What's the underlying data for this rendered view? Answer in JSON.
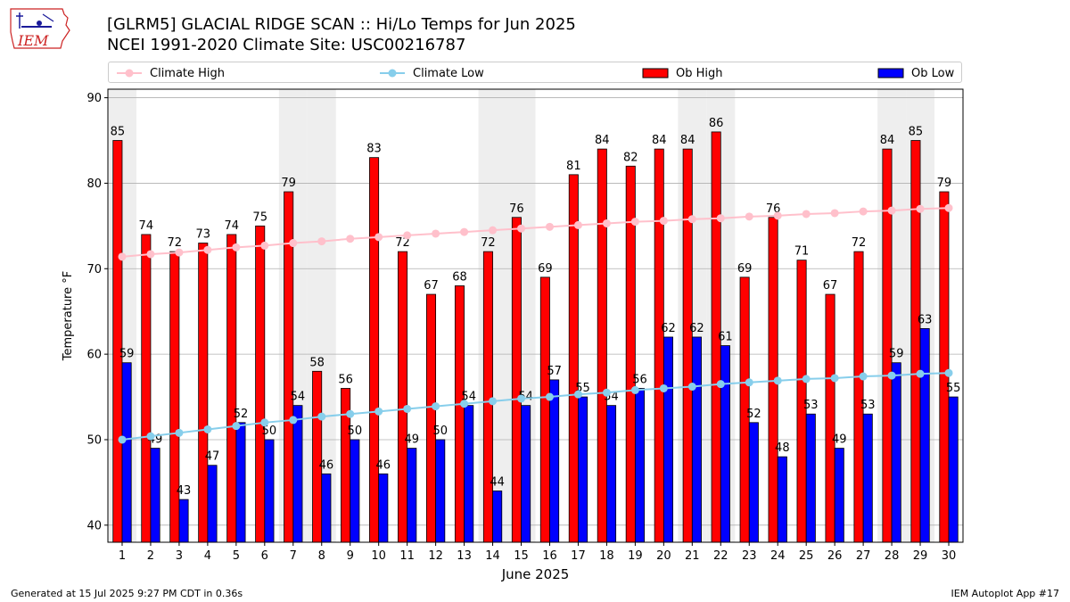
{
  "header": {
    "title_line1": "[GLRM5] GLACIAL RIDGE SCAN :: Hi/Lo Temps for Jun 2025",
    "title_line2": "NCEI 1991-2020 Climate Site: USC00216787",
    "logo_text": "IEM"
  },
  "footer": {
    "generated": "Generated at 15 Jul 2025 9:27 PM CDT in 0.36s",
    "app": "IEM Autoplot App #17"
  },
  "colors": {
    "ob_high": "#ff0000",
    "ob_low": "#0000ff",
    "climate_high": "#ffc0cb",
    "climate_low": "#87ceeb",
    "weekend_shade": "#eeeeee",
    "grid": "#b0b0b0"
  },
  "chart_data": {
    "type": "bar",
    "xlabel": "June 2025",
    "ylabel": "Temperature °F",
    "ylim": [
      38,
      91
    ],
    "yticks": [
      40,
      50,
      60,
      70,
      80,
      90
    ],
    "grid": "horizontal",
    "legend_placement": "top",
    "categories": [
      "1",
      "2",
      "3",
      "4",
      "5",
      "6",
      "7",
      "8",
      "9",
      "10",
      "11",
      "12",
      "13",
      "14",
      "15",
      "16",
      "17",
      "18",
      "19",
      "20",
      "21",
      "22",
      "23",
      "24",
      "25",
      "26",
      "27",
      "28",
      "29",
      "30"
    ],
    "shaded_weekend_days": [
      1,
      7,
      8,
      14,
      15,
      21,
      22,
      28,
      29
    ],
    "series": [
      {
        "name": "Ob High",
        "kind": "bar",
        "values": [
          85,
          74,
          72,
          73,
          74,
          75,
          79,
          58,
          56,
          83,
          72,
          67,
          68,
          72,
          76,
          69,
          81,
          84,
          82,
          84,
          84,
          86,
          69,
          76,
          71,
          67,
          72,
          84,
          85,
          79
        ]
      },
      {
        "name": "Ob Low",
        "kind": "bar",
        "values": [
          59,
          49,
          43,
          47,
          52,
          50,
          54,
          46,
          50,
          46,
          49,
          50,
          54,
          44,
          54,
          57,
          55,
          54,
          56,
          62,
          62,
          61,
          52,
          48,
          53,
          49,
          53,
          59,
          63,
          55
        ]
      },
      {
        "name": "Climate High",
        "kind": "line",
        "values": [
          71.4,
          71.7,
          71.9,
          72.2,
          72.5,
          72.7,
          73.0,
          73.2,
          73.5,
          73.7,
          73.9,
          74.1,
          74.3,
          74.5,
          74.7,
          74.9,
          75.1,
          75.3,
          75.5,
          75.6,
          75.8,
          75.9,
          76.1,
          76.2,
          76.4,
          76.5,
          76.7,
          76.8,
          77.0,
          77.1
        ]
      },
      {
        "name": "Climate Low",
        "kind": "line",
        "values": [
          50.0,
          50.4,
          50.8,
          51.2,
          51.6,
          52.0,
          52.3,
          52.7,
          53.0,
          53.3,
          53.6,
          53.9,
          54.2,
          54.5,
          54.8,
          55.0,
          55.3,
          55.5,
          55.8,
          56.0,
          56.2,
          56.5,
          56.7,
          56.9,
          57.1,
          57.2,
          57.4,
          57.5,
          57.7,
          57.8
        ]
      }
    ]
  }
}
